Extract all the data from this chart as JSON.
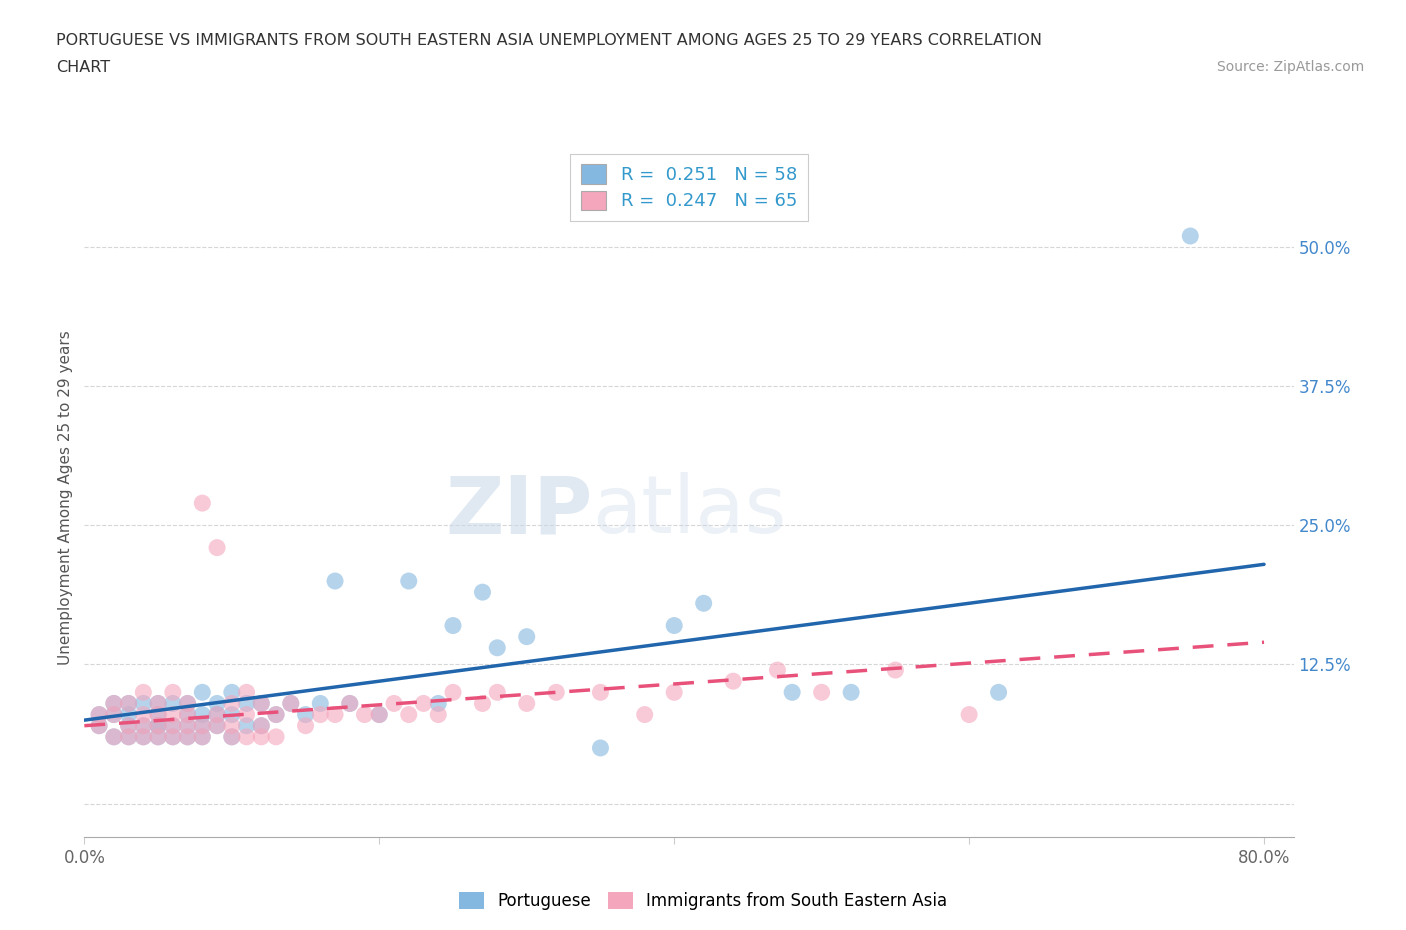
{
  "title_line1": "PORTUGUESE VS IMMIGRANTS FROM SOUTH EASTERN ASIA UNEMPLOYMENT AMONG AGES 25 TO 29 YEARS CORRELATION",
  "title_line2": "CHART",
  "source_text": "Source: ZipAtlas.com",
  "ylabel": "Unemployment Among Ages 25 to 29 years",
  "xlim": [
    0.0,
    0.82
  ],
  "ylim": [
    -0.03,
    0.58
  ],
  "yticks_right": [
    0.0,
    0.125,
    0.25,
    0.375,
    0.5
  ],
  "ytick_labels_right": [
    "",
    "12.5%",
    "25.0%",
    "37.5%",
    "50.0%"
  ],
  "blue_color": "#85b8e0",
  "pink_color": "#f4a6bc",
  "blue_line_color": "#2166ac",
  "pink_line_color": "#e8527a",
  "blue_R": 0.251,
  "blue_N": 58,
  "pink_R": 0.247,
  "pink_N": 65,
  "legend_label_blue": "Portuguese",
  "legend_label_pink": "Immigrants from South Eastern Asia",
  "watermark_zip": "ZIP",
  "watermark_atlas": "atlas",
  "background_color": "#ffffff",
  "grid_color": "#cccccc",
  "blue_scatter_x": [
    0.01,
    0.01,
    0.02,
    0.02,
    0.02,
    0.03,
    0.03,
    0.03,
    0.03,
    0.04,
    0.04,
    0.04,
    0.05,
    0.05,
    0.05,
    0.05,
    0.05,
    0.06,
    0.06,
    0.06,
    0.07,
    0.07,
    0.07,
    0.07,
    0.08,
    0.08,
    0.08,
    0.08,
    0.09,
    0.09,
    0.09,
    0.1,
    0.1,
    0.1,
    0.11,
    0.11,
    0.12,
    0.12,
    0.13,
    0.14,
    0.15,
    0.16,
    0.17,
    0.18,
    0.2,
    0.22,
    0.24,
    0.25,
    0.27,
    0.28,
    0.3,
    0.35,
    0.4,
    0.42,
    0.48,
    0.52,
    0.62,
    0.75
  ],
  "blue_scatter_y": [
    0.07,
    0.08,
    0.06,
    0.08,
    0.09,
    0.06,
    0.07,
    0.08,
    0.09,
    0.06,
    0.07,
    0.09,
    0.06,
    0.07,
    0.07,
    0.08,
    0.09,
    0.06,
    0.07,
    0.09,
    0.06,
    0.07,
    0.08,
    0.09,
    0.06,
    0.07,
    0.08,
    0.1,
    0.07,
    0.08,
    0.09,
    0.06,
    0.08,
    0.1,
    0.07,
    0.09,
    0.07,
    0.09,
    0.08,
    0.09,
    0.08,
    0.09,
    0.2,
    0.09,
    0.08,
    0.2,
    0.09,
    0.16,
    0.19,
    0.14,
    0.15,
    0.05,
    0.16,
    0.18,
    0.1,
    0.1,
    0.1,
    0.51
  ],
  "pink_scatter_x": [
    0.01,
    0.01,
    0.02,
    0.02,
    0.02,
    0.03,
    0.03,
    0.03,
    0.04,
    0.04,
    0.04,
    0.04,
    0.05,
    0.05,
    0.05,
    0.05,
    0.06,
    0.06,
    0.06,
    0.06,
    0.07,
    0.07,
    0.07,
    0.07,
    0.08,
    0.08,
    0.08,
    0.09,
    0.09,
    0.09,
    0.1,
    0.1,
    0.1,
    0.11,
    0.11,
    0.11,
    0.12,
    0.12,
    0.12,
    0.13,
    0.13,
    0.14,
    0.15,
    0.16,
    0.17,
    0.18,
    0.19,
    0.2,
    0.21,
    0.22,
    0.23,
    0.24,
    0.25,
    0.27,
    0.28,
    0.3,
    0.32,
    0.35,
    0.38,
    0.4,
    0.44,
    0.47,
    0.5,
    0.55,
    0.6
  ],
  "pink_scatter_y": [
    0.07,
    0.08,
    0.06,
    0.08,
    0.09,
    0.06,
    0.07,
    0.09,
    0.06,
    0.07,
    0.08,
    0.1,
    0.06,
    0.07,
    0.08,
    0.09,
    0.06,
    0.07,
    0.08,
    0.1,
    0.06,
    0.07,
    0.08,
    0.09,
    0.06,
    0.07,
    0.27,
    0.07,
    0.08,
    0.23,
    0.06,
    0.07,
    0.09,
    0.06,
    0.08,
    0.1,
    0.06,
    0.07,
    0.09,
    0.06,
    0.08,
    0.09,
    0.07,
    0.08,
    0.08,
    0.09,
    0.08,
    0.08,
    0.09,
    0.08,
    0.09,
    0.08,
    0.1,
    0.09,
    0.1,
    0.09,
    0.1,
    0.1,
    0.08,
    0.1,
    0.11,
    0.12,
    0.1,
    0.12,
    0.08
  ],
  "blue_line_x0": 0.0,
  "blue_line_y0": 0.075,
  "blue_line_x1": 0.8,
  "blue_line_y1": 0.215,
  "pink_line_x0": 0.0,
  "pink_line_y0": 0.07,
  "pink_line_x1": 0.8,
  "pink_line_y1": 0.145
}
